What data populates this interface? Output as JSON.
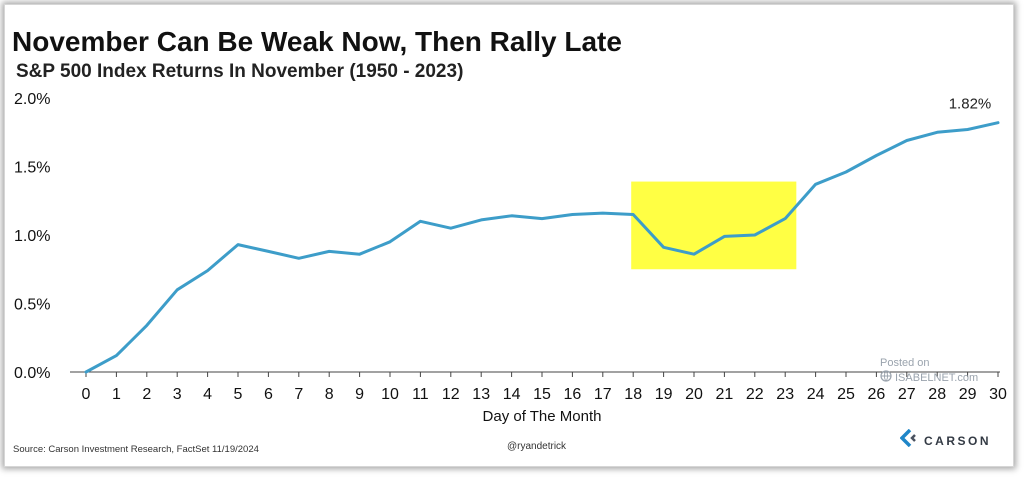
{
  "chart_data": {
    "type": "line",
    "title": "November Can Be Weak Now, Then Rally Late",
    "subtitle": "S&P 500 Index Returns In November (1950 - 2023)",
    "xlabel": "Day of The Month",
    "ylabel": "",
    "x": [
      0,
      1,
      2,
      3,
      4,
      5,
      6,
      7,
      8,
      9,
      10,
      11,
      12,
      13,
      14,
      15,
      16,
      17,
      18,
      19,
      20,
      21,
      22,
      23,
      24,
      25,
      26,
      27,
      28,
      29,
      30
    ],
    "series": [
      {
        "values": [
          0.0,
          0.12,
          0.34,
          0.6,
          0.74,
          0.93,
          0.88,
          0.83,
          0.88,
          0.86,
          0.95,
          1.1,
          1.05,
          1.11,
          1.14,
          1.12,
          1.15,
          1.16,
          1.15,
          0.91,
          0.86,
          0.99,
          1.0,
          1.12,
          1.37,
          1.46,
          1.58,
          1.69,
          1.75,
          1.77,
          1.82
        ],
        "color": "#3d9dc9"
      }
    ],
    "ylim": [
      0,
      2.0
    ],
    "yticks": [
      "0.0%",
      "0.5%",
      "1.0%",
      "1.5%",
      "2.0%"
    ],
    "ytick_values": [
      0,
      0.5,
      1.0,
      1.5,
      2.0
    ],
    "xlim": [
      0,
      30
    ],
    "grid": false,
    "annotation": {
      "x": 30,
      "text": "1.82%"
    },
    "highlight": {
      "x_range": [
        18,
        23.3
      ],
      "y_range": [
        0.75,
        1.39
      ],
      "color": "#ffff44"
    }
  },
  "footer": {
    "source": "Source: Carson Investment Research, FactSet 11/19/2024",
    "handle": "@ryandetrick",
    "logo_text": "CARSON"
  },
  "watermark": {
    "line1": "Posted on",
    "line2": "ISABELNET.com"
  },
  "colors": {
    "line": "#3d9dc9",
    "highlight": "#ffff44",
    "logo_accent": "#1f86c8"
  }
}
